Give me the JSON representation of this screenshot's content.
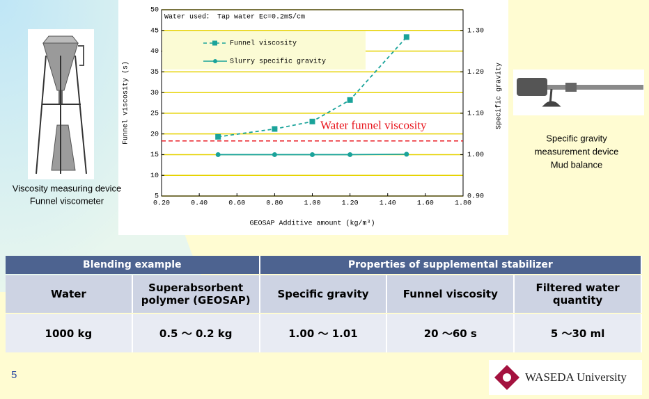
{
  "chart_data": {
    "type": "line",
    "annotation": "Water used： Tap water Ec=0.2mS/cm",
    "x_label": "GEOSAP Additive amount (kg/m³)",
    "y_label": "Funnel viscosity (s)",
    "y2_label": "Specific gravity",
    "x": [
      0.5,
      0.8,
      1.0,
      1.2,
      1.5
    ],
    "series": [
      {
        "name": "Funnel viscosity",
        "color": "#1aa39a",
        "values": [
          19.3,
          21.2,
          23,
          28.2,
          43.4
        ],
        "marker": "square",
        "line_style": "dashed"
      },
      {
        "name": "Slurry specific gravity",
        "color": "#1aa39a",
        "values": [
          1.0,
          1.0,
          1.0,
          1.0,
          1.001
        ],
        "marker": "circle",
        "line_style": "solid",
        "axis": "y2"
      }
    ],
    "reference_line": {
      "label": "Water funnel viscosity",
      "value": 18.3,
      "color": "#e8141c"
    },
    "xlim": [
      0.2,
      1.8
    ],
    "xticks": [
      {
        "value": 0.2,
        "label": "0.20"
      },
      {
        "value": 0.4,
        "label": "0.40"
      },
      {
        "value": 0.6,
        "label": "0.60"
      },
      {
        "value": 0.8,
        "label": "0.80"
      },
      {
        "value": 1.0,
        "label": "1.00"
      },
      {
        "value": 1.2,
        "label": "1.20"
      },
      {
        "value": 1.4,
        "label": "1.40"
      },
      {
        "value": 1.6,
        "label": "1.60"
      },
      {
        "value": 1.8,
        "label": "1.80"
      }
    ],
    "ylim": [
      5,
      50
    ],
    "yticks": [
      5,
      10,
      15,
      20,
      25,
      30,
      35,
      40,
      45,
      50
    ],
    "y2lim": [
      0.9,
      1.35
    ],
    "y2ticks": [
      {
        "value": 0.9,
        "label": "0.90"
      },
      {
        "value": 1.0,
        "label": "1.00"
      },
      {
        "value": 1.1,
        "label": "1.10"
      },
      {
        "value": 1.2,
        "label": "1.20"
      },
      {
        "value": 1.3,
        "label": "1.30"
      }
    ],
    "grid": true,
    "grid_color": "#e6d200"
  },
  "captions": {
    "funnel": [
      "Viscosity measuring device",
      "Funnel viscometer"
    ],
    "balance": [
      "Specific gravity",
      "measurement device",
      "Mud balance"
    ]
  },
  "table": {
    "groups": [
      "Blending example",
      "Properties of supplemental stabilizer"
    ],
    "columns": [
      "Water",
      "Superabsorbent polymer (GEOSAP)",
      "Specific gravity",
      "Funnel viscosity",
      "Filtered water quantity"
    ],
    "rows": [
      [
        "1000 kg",
        "0.5 ～ 0.2 kg",
        "1.00 ～  1.01",
        "20 ～60 s",
        "5 ～30 ml"
      ]
    ]
  },
  "page_number": "5",
  "logo": "WASEDA University"
}
